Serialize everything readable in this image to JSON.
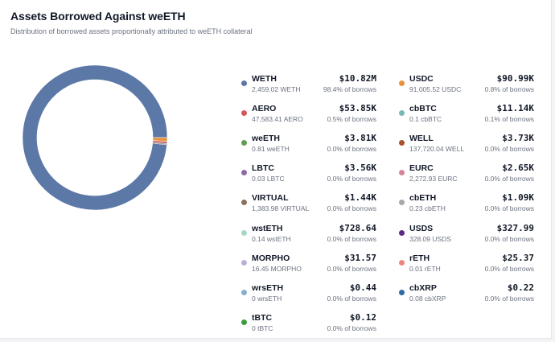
{
  "header": {
    "title": "Assets Borrowed Against weETH",
    "subtitle": "Distribution of borrowed assets proportionally attributed to weETH collateral"
  },
  "legend": {
    "items": [
      {
        "name": "WETH",
        "amount": "2,459.02 WETH",
        "value": "$10.82M",
        "pct": "98.4% of borrows",
        "color": "#5b78a6"
      },
      {
        "name": "USDC",
        "amount": "91,005.52 USDC",
        "value": "$90.99K",
        "pct": "0.8% of borrows",
        "color": "#e8913c"
      },
      {
        "name": "AERO",
        "amount": "47,583.41 AERO",
        "value": "$53.85K",
        "pct": "0.5% of borrows",
        "color": "#d25a58"
      },
      {
        "name": "cbBTC",
        "amount": "0.1 cbBTC",
        "value": "$11.14K",
        "pct": "0.1% of borrows",
        "color": "#7ab8b4"
      },
      {
        "name": "weETH",
        "amount": "0.81 weETH",
        "value": "$3.81K",
        "pct": "0.0% of borrows",
        "color": "#5f9e52"
      },
      {
        "name": "WELL",
        "amount": "137,720.04 WELL",
        "value": "$3.73K",
        "pct": "0.0% of borrows",
        "color": "#a8522a"
      },
      {
        "name": "LBTC",
        "amount": "0.03 LBTC",
        "value": "$3.56K",
        "pct": "0.0% of borrows",
        "color": "#8c6bab"
      },
      {
        "name": "EURC",
        "amount": "2,272.93 EURC",
        "value": "$2.65K",
        "pct": "0.0% of borrows",
        "color": "#d5839d"
      },
      {
        "name": "VIRTUAL",
        "amount": "1,383.98 VIRTUAL",
        "value": "$1.44K",
        "pct": "0.0% of borrows",
        "color": "#8b6f5f"
      },
      {
        "name": "cbETH",
        "amount": "0.23 cbETH",
        "value": "$1.09K",
        "pct": "0.0% of borrows",
        "color": "#a8a8a8"
      },
      {
        "name": "wstETH",
        "amount": "0.14 wstETH",
        "value": "$728.64",
        "pct": "0.0% of borrows",
        "color": "#a6d8c6"
      },
      {
        "name": "USDS",
        "amount": "328.09 USDS",
        "value": "$327.99",
        "pct": "0.0% of borrows",
        "color": "#5b2a86"
      },
      {
        "name": "MORPHO",
        "amount": "16.45 MORPHO",
        "value": "$31.57",
        "pct": "0.0% of borrows",
        "color": "#b9b2d8"
      },
      {
        "name": "rETH",
        "amount": "0.01 rETH",
        "value": "$25.37",
        "pct": "0.0% of borrows",
        "color": "#e9877c"
      },
      {
        "name": "wrsETH",
        "amount": "0 wrsETH",
        "value": "$0.44",
        "pct": "0.0% of borrows",
        "color": "#86aed0"
      },
      {
        "name": "cbXRP",
        "amount": "0.08 cbXRP",
        "value": "$0.22",
        "pct": "0.0% of borrows",
        "color": "#2f6aa3"
      },
      {
        "name": "tBTC",
        "amount": "0 tBTC",
        "value": "$0.12",
        "pct": "0.0% of borrows",
        "color": "#3f9c3f"
      }
    ]
  },
  "chart_data": {
    "type": "pie",
    "donut": true,
    "labels": [
      "WETH",
      "USDC",
      "AERO",
      "cbBTC",
      "weETH",
      "WELL",
      "LBTC",
      "EURC",
      "VIRTUAL",
      "cbETH",
      "wstETH",
      "USDS",
      "MORPHO",
      "rETH",
      "wrsETH",
      "cbXRP",
      "tBTC"
    ],
    "values": [
      10820000,
      90990,
      53850,
      11140,
      3810,
      3730,
      3560,
      2650,
      1440,
      1090,
      728.64,
      327.99,
      31.57,
      25.37,
      0.44,
      0.22,
      0.12
    ],
    "colors": [
      "#5b78a6",
      "#e8913c",
      "#d25a58",
      "#7ab8b4",
      "#5f9e52",
      "#a8522a",
      "#8c6bab",
      "#d5839d",
      "#8b6f5f",
      "#a8a8a8",
      "#a6d8c6",
      "#5b2a86",
      "#b9b2d8",
      "#e9877c",
      "#86aed0",
      "#2f6aa3",
      "#3f9c3f"
    ]
  }
}
